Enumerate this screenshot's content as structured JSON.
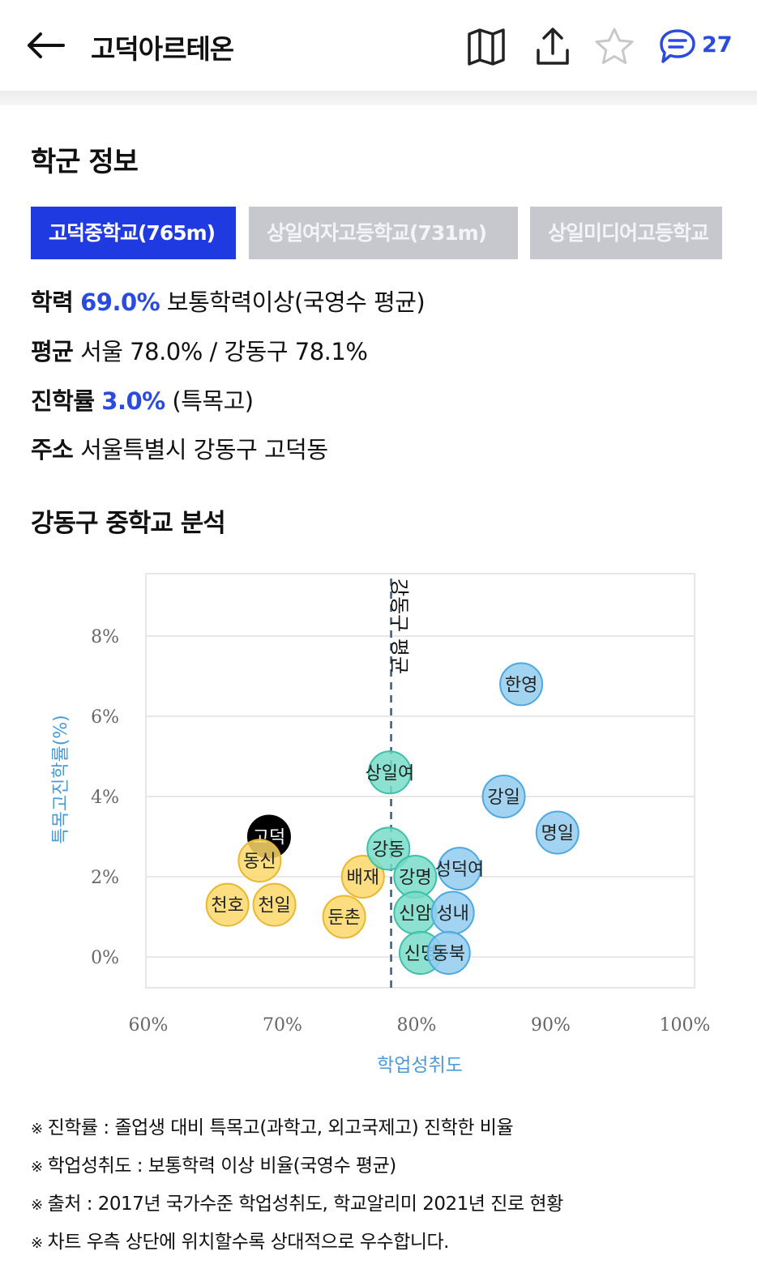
{
  "header": {
    "title": "고덕아르테온",
    "comment_count": "27",
    "icons": [
      "back-arrow-icon",
      "map-icon",
      "share-icon",
      "star-icon",
      "comment-icon"
    ]
  },
  "school_section": {
    "title": "학군 정보",
    "tabs": [
      {
        "label": "고덕중학교(765m)",
        "active": true
      },
      {
        "label": "상일여자고등학교(731m)",
        "active": false
      },
      {
        "label": "상일미디어고등학교",
        "active": false
      }
    ],
    "rows": [
      {
        "key": "학력",
        "highlight": "69.0%",
        "rest": " 보통학력이상(국영수 평균)"
      },
      {
        "key": "평균",
        "highlight": "",
        "rest": " 서울 78.0% / 강동구 78.1%"
      },
      {
        "key": "진학률",
        "highlight": "3.0%",
        "rest": " (특목고)"
      },
      {
        "key": "주소",
        "highlight": "",
        "rest": " 서울특별시 강동구 고덕동"
      }
    ]
  },
  "analysis": {
    "title": "강동구 중학교 분석"
  },
  "chart_data": {
    "type": "scatter",
    "xlabel": "학업성취도",
    "ylabel": "특목고진학률(%)",
    "xlim": [
      60,
      100
    ],
    "ylim": [
      -0.8,
      9.5
    ],
    "x_ticks": [
      "60%",
      "70%",
      "80%",
      "90%",
      "100%"
    ],
    "y_ticks": [
      "0%",
      "2%",
      "4%",
      "6%",
      "8%"
    ],
    "x_tick_values": [
      60,
      70,
      80,
      90,
      100
    ],
    "y_tick_values": [
      0,
      2,
      4,
      6,
      8
    ],
    "average_line": {
      "x": 78.1,
      "label": "강동구 평균"
    },
    "colors": {
      "yellow": "#fbd86b",
      "teal": "#78dcc8",
      "blue": "#92cdf0",
      "black": "#000000"
    },
    "points": [
      {
        "name": "고덕",
        "x": 69.0,
        "y": 3.0,
        "color": "black"
      },
      {
        "name": "동신",
        "x": 68.3,
        "y": 2.4,
        "color": "yellow"
      },
      {
        "name": "천호",
        "x": 65.9,
        "y": 1.3,
        "color": "yellow"
      },
      {
        "name": "천일",
        "x": 69.4,
        "y": 1.3,
        "color": "yellow"
      },
      {
        "name": "배재",
        "x": 76.0,
        "y": 2.0,
        "color": "yellow"
      },
      {
        "name": "둔촌",
        "x": 74.6,
        "y": 1.0,
        "color": "yellow"
      },
      {
        "name": "상일여",
        "x": 78.0,
        "y": 4.6,
        "color": "teal"
      },
      {
        "name": "강동",
        "x": 77.9,
        "y": 2.7,
        "color": "teal"
      },
      {
        "name": "강명",
        "x": 79.9,
        "y": 2.0,
        "color": "teal"
      },
      {
        "name": "신암",
        "x": 79.9,
        "y": 1.1,
        "color": "teal"
      },
      {
        "name": "신명",
        "x": 80.3,
        "y": 0.1,
        "color": "teal"
      },
      {
        "name": "한영",
        "x": 87.8,
        "y": 6.8,
        "color": "blue"
      },
      {
        "name": "강일",
        "x": 86.5,
        "y": 4.0,
        "color": "blue"
      },
      {
        "name": "명일",
        "x": 90.5,
        "y": 3.1,
        "color": "blue"
      },
      {
        "name": "성덕여",
        "x": 83.2,
        "y": 2.2,
        "color": "blue"
      },
      {
        "name": "성내",
        "x": 82.7,
        "y": 1.1,
        "color": "blue"
      },
      {
        "name": "동북",
        "x": 82.4,
        "y": 0.1,
        "color": "blue"
      }
    ]
  },
  "notes": [
    "진학률 : 졸업생 대비 특목고(과학고, 외고국제고) 진학한 비율",
    "학업성취도 : 보통학력 이상 비율(국영수 평균)",
    "출처 : 2017년 국가수준 학업성취도, 학교알리미 2021년 진로 현황",
    "차트 우측 상단에 위치할수록 상대적으로 우수합니다."
  ],
  "note_mark": "※"
}
